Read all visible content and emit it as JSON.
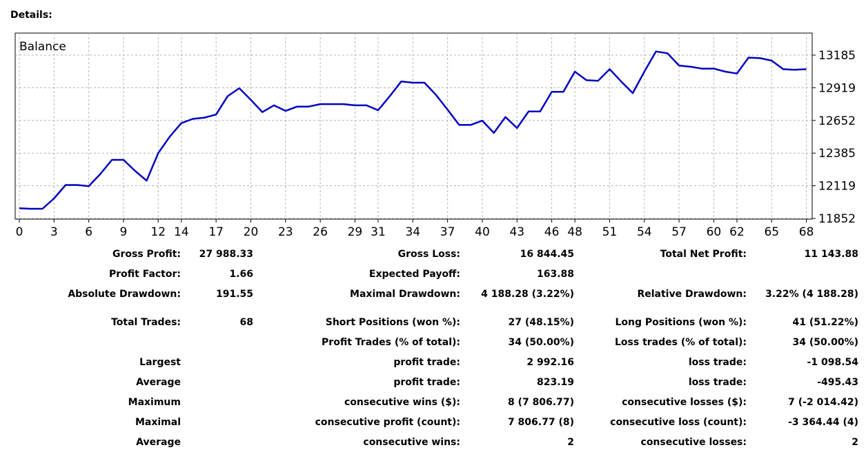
{
  "page_title": "Details:",
  "chart_data": {
    "type": "line",
    "title": "Balance",
    "y_ticks": [
      13185,
      12919,
      12652,
      12385,
      12119,
      11852
    ],
    "x_ticks": [
      0,
      3,
      6,
      9,
      12,
      14,
      17,
      20,
      23,
      26,
      29,
      31,
      34,
      37,
      40,
      43,
      46,
      48,
      51,
      54,
      57,
      60,
      62,
      65,
      68
    ],
    "ylim": [
      11852,
      13185
    ],
    "xlim": [
      0,
      68.5
    ],
    "grid": true,
    "series": [
      {
        "color": "#0000c0",
        "x": [
          0,
          1,
          2,
          3,
          4,
          5,
          6,
          7,
          8,
          9,
          10,
          11,
          12,
          13,
          14,
          15,
          16,
          17,
          18,
          19,
          20,
          21,
          22,
          23,
          24,
          25,
          26,
          27,
          28,
          29,
          30,
          31,
          32,
          33,
          34,
          35,
          36,
          37,
          38,
          39,
          40,
          41,
          42,
          43,
          44,
          45,
          46,
          47,
          48,
          49,
          50,
          51,
          52,
          53,
          54,
          55,
          56,
          57,
          58,
          59,
          60,
          61,
          62,
          63,
          64,
          65,
          66,
          67,
          68
        ],
        "values": [
          11935,
          11931,
          11931,
          12015,
          12125,
          12125,
          12115,
          12215,
          12330,
          12330,
          12240,
          12160,
          12385,
          12520,
          12630,
          12665,
          12675,
          12700,
          12850,
          12915,
          12820,
          12720,
          12775,
          12730,
          12765,
          12765,
          12785,
          12785,
          12785,
          12775,
          12775,
          12735,
          12850,
          12970,
          12960,
          12960,
          12860,
          12740,
          12615,
          12615,
          12650,
          12550,
          12680,
          12590,
          12725,
          12725,
          12885,
          12885,
          13050,
          12980,
          12975,
          13070,
          12970,
          12875,
          13050,
          13215,
          13200,
          13100,
          13090,
          13075,
          13075,
          13050,
          13035,
          13165,
          13160,
          13140,
          13070,
          13065,
          13070
        ]
      }
    ]
  },
  "stats": {
    "gross_profit_label": "Gross Profit:",
    "gross_profit": "27 988.33",
    "gross_loss_label": "Gross Loss:",
    "gross_loss": "16 844.45",
    "total_net_profit_label": "Total Net Profit:",
    "total_net_profit": "11 143.88",
    "profit_factor_label": "Profit Factor:",
    "profit_factor": "1.66",
    "expected_payoff_label": "Expected Payoff:",
    "expected_payoff": "163.88",
    "absolute_drawdown_label": "Absolute Drawdown:",
    "absolute_drawdown": "191.55",
    "maximal_drawdown_label": "Maximal Drawdown:",
    "maximal_drawdown": "4 188.28 (3.22%)",
    "relative_drawdown_label": "Relative Drawdown:",
    "relative_drawdown": "3.22% (4 188.28)",
    "total_trades_label": "Total Trades:",
    "total_trades": "68",
    "short_positions_label": "Short Positions (won %):",
    "short_positions": "27 (48.15%)",
    "long_positions_label": "Long Positions (won %):",
    "long_positions": "41 (51.22%)",
    "profit_trades_label": "Profit Trades (% of total):",
    "profit_trades": "34 (50.00%)",
    "loss_trades_label": "Loss trades (% of total):",
    "loss_trades": "34 (50.00%)",
    "largest_label": "Largest",
    "largest_profit_label": "profit trade:",
    "largest_profit": "2 992.16",
    "largest_loss_label": "loss trade:",
    "largest_loss": "-1 098.54",
    "average_label": "Average",
    "average_profit_label": "profit trade:",
    "average_profit": "823.19",
    "average_loss_label": "loss trade:",
    "average_loss": "-495.43",
    "maximum_label": "Maximum",
    "max_consec_wins_label": "consecutive wins ($):",
    "max_consec_wins": "8 (7 806.77)",
    "max_consec_losses_label": "consecutive losses ($):",
    "max_consec_losses": "7 (-2 014.42)",
    "maximal_label": "Maximal",
    "maximal_consec_profit_label": "consecutive profit (count):",
    "maximal_consec_profit": "7 806.77 (8)",
    "maximal_consec_loss_label": "consecutive loss (count):",
    "maximal_consec_loss": "-3 364.44 (4)",
    "average2_label": "Average",
    "avg_consec_wins_label": "consecutive wins:",
    "avg_consec_wins": "2",
    "avg_consec_losses_label": "consecutive losses:",
    "avg_consec_losses": "2"
  }
}
